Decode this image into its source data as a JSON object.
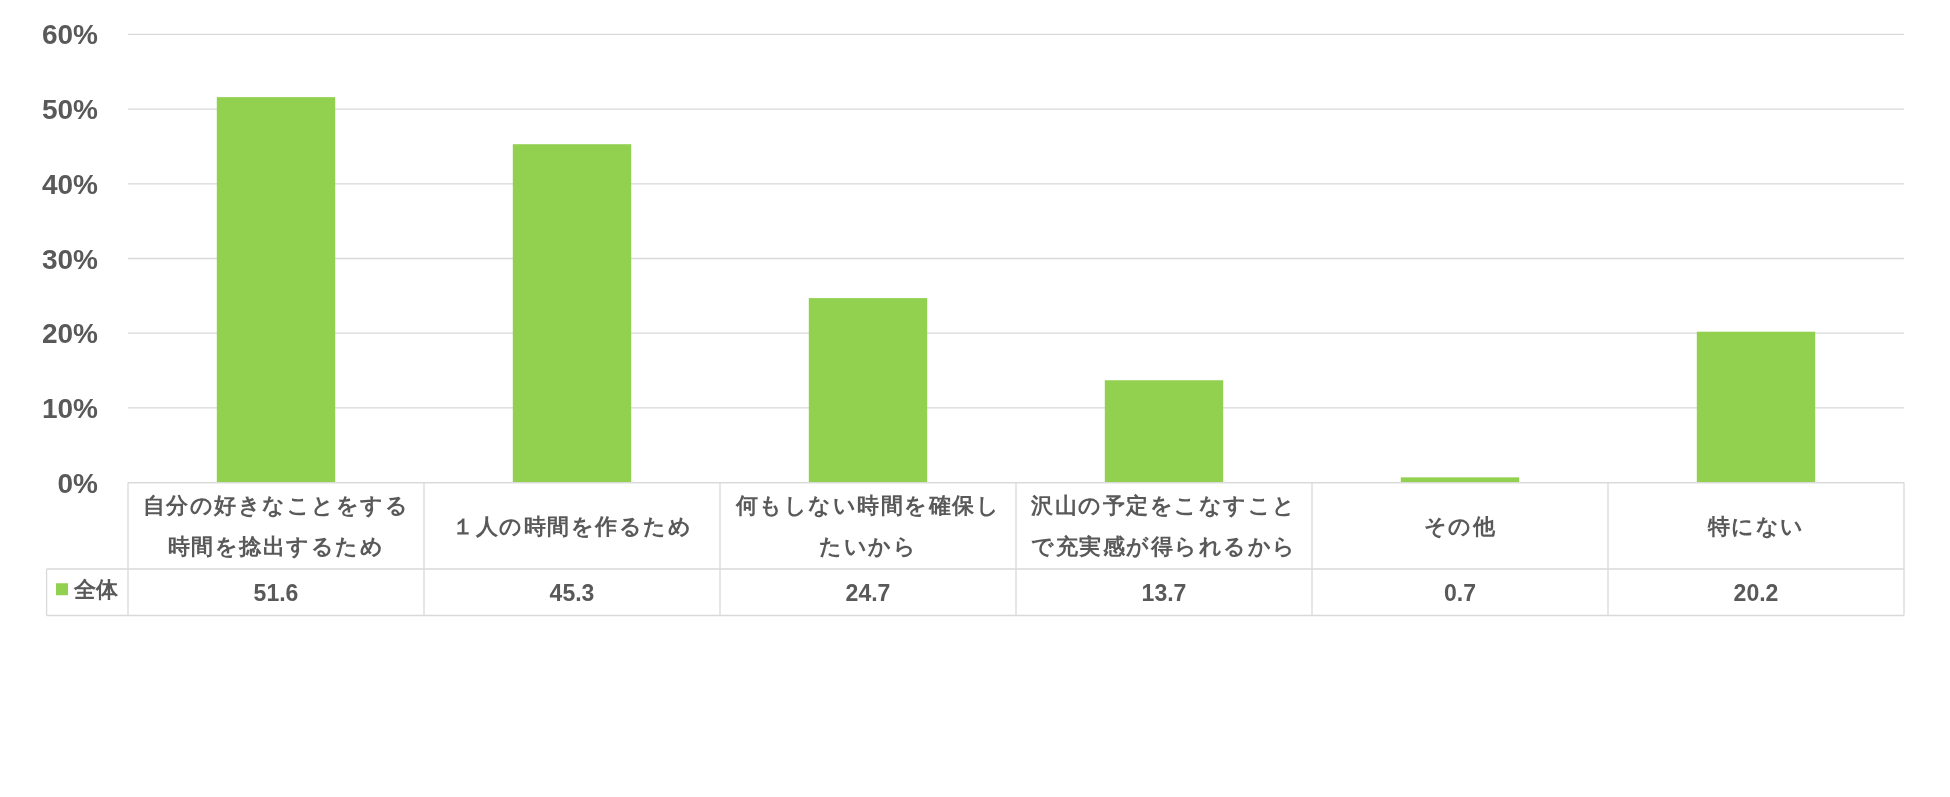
{
  "chart_data": {
    "type": "bar",
    "categories": [
      "自分の好きなことをする時間を捻出するため",
      "１人の時間を作るため",
      "何もしない時間を確保したいから",
      "沢山の予定をこなすことで充実感が得られるから",
      "その他",
      "特にない"
    ],
    "series": [
      {
        "name": "全体",
        "color": "#92d050",
        "values": [
          51.6,
          45.3,
          24.7,
          13.7,
          0.7,
          20.2
        ]
      }
    ],
    "ylim": [
      0,
      60
    ],
    "yticks": [
      {
        "value": 0,
        "label": "0%"
      },
      {
        "value": 10,
        "label": "10%"
      },
      {
        "value": 20,
        "label": "20%"
      },
      {
        "value": 30,
        "label": "30%"
      },
      {
        "value": 40,
        "label": "40%"
      },
      {
        "value": 50,
        "label": "50%"
      },
      {
        "value": 60,
        "label": "60%"
      }
    ],
    "grid": "y",
    "legend": "bottom",
    "data_labels": true
  }
}
